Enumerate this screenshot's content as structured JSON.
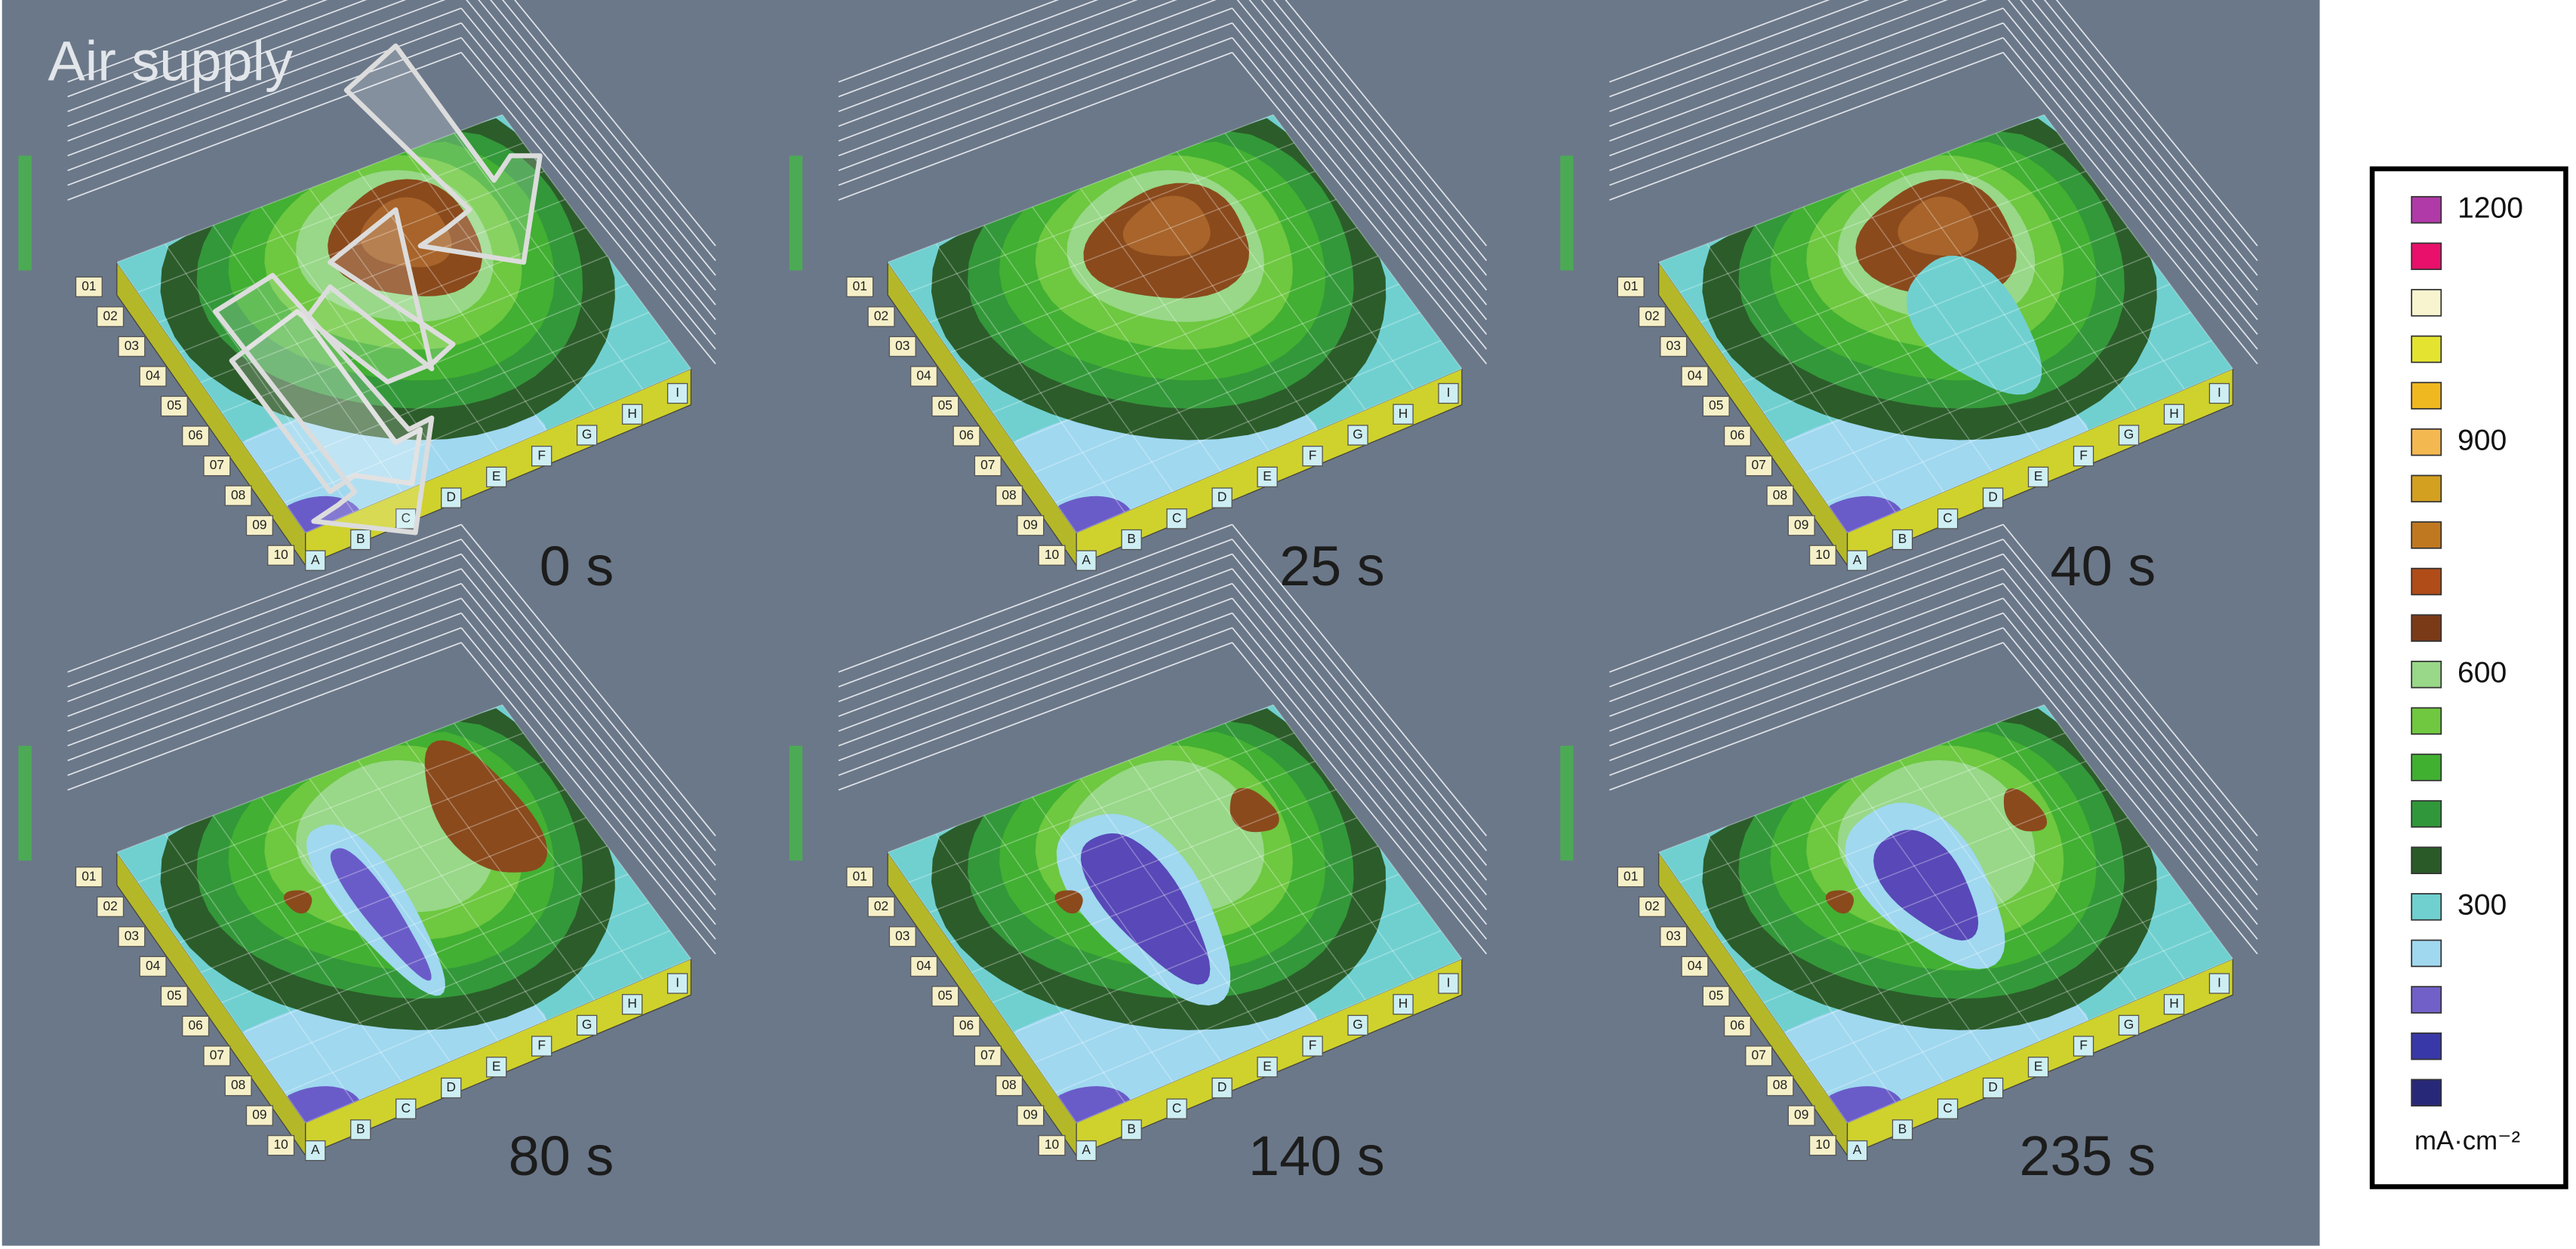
{
  "annotation": "Air supply",
  "panels": [
    {
      "time": "0 s"
    },
    {
      "time": "25 s"
    },
    {
      "time": "40 s"
    },
    {
      "time": "80 s"
    },
    {
      "time": "140 s"
    },
    {
      "time": "235 s"
    }
  ],
  "row_labels": [
    "01",
    "02",
    "03",
    "04",
    "05",
    "06",
    "07",
    "08",
    "09",
    "10"
  ],
  "column_labels": [
    "A",
    "B",
    "C",
    "D",
    "E",
    "F",
    "G",
    "H",
    "I"
  ],
  "legend": {
    "swatches": [
      {
        "color": "#b03aa8",
        "label": "1200"
      },
      {
        "color": "#e8106a"
      },
      {
        "color": "#f8f4d0"
      },
      {
        "color": "#e4e430"
      },
      {
        "color": "#f0b820"
      },
      {
        "color": "#f4b850",
        "label": "900"
      },
      {
        "color": "#d4a020"
      },
      {
        "color": "#c07820"
      },
      {
        "color": "#b04c18"
      },
      {
        "color": "#7a3a18"
      },
      {
        "color": "#98d888",
        "label": "600"
      },
      {
        "color": "#70c840"
      },
      {
        "color": "#40b030"
      },
      {
        "color": "#30983a"
      },
      {
        "color": "#2a5a28"
      },
      {
        "color": "#70d0d0",
        "label": "300"
      },
      {
        "color": "#a0d8f0"
      },
      {
        "color": "#7060c8"
      },
      {
        "color": "#3838a8"
      },
      {
        "color": "#282878"
      }
    ],
    "unit": "mA·cm⁻²"
  }
}
